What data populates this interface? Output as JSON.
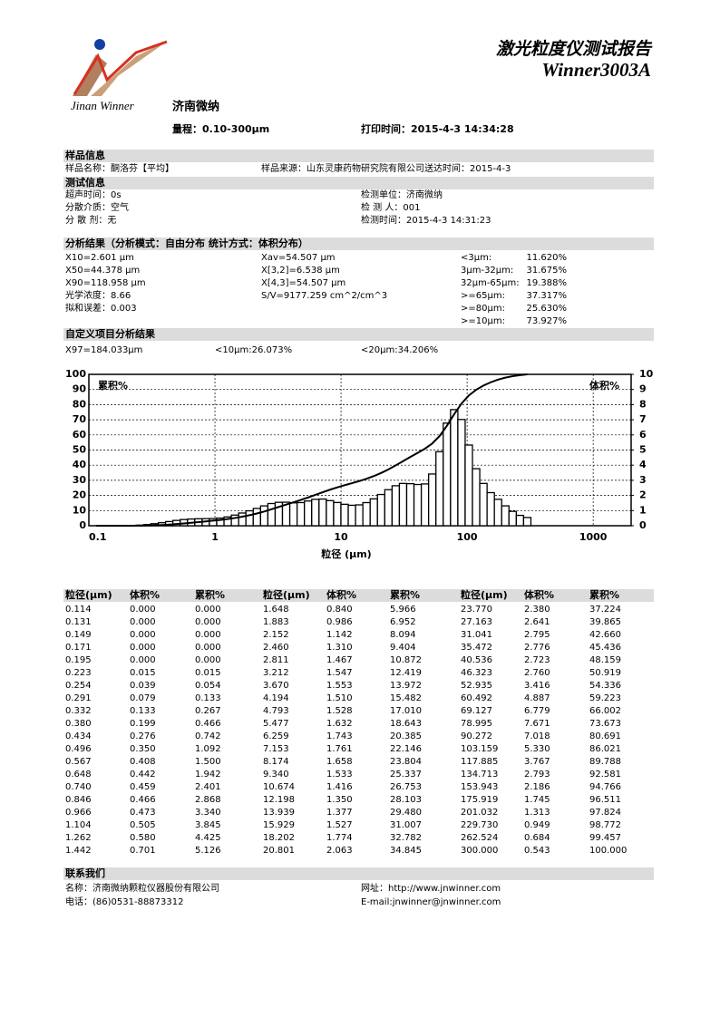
{
  "header": {
    "title": "激光粒度仪测试报告",
    "model": "Winner3003A",
    "brand_en": "Jinan Winner",
    "brand_cn": "济南微纳",
    "range": "量程：0.10-300μm",
    "print_time": "打印时间：2015-4-3 14:34:28"
  },
  "sections": [
    {
      "title": "样品信息",
      "columns": [
        [
          "样品名称：酮洛芬【平均】"
        ],
        [
          "样品来源：山东灵康药物研究院有限公司送达时间：2015-4-3"
        ]
      ]
    },
    {
      "title": "测试信息",
      "columns": [
        [
          "超声时间：0s",
          "分散介质：空气",
          "分 散 剂：无"
        ],
        [
          "检测单位：济南微纳",
          "检 测 人：001",
          "检测时间：2015-4-3 14:31:23"
        ]
      ]
    },
    {
      "title": "分析结果（分析模式：自由分布    统计方式：体积分布）",
      "columns": [
        [
          "X10=2.601 μm",
          "X50=44.378 μm",
          "X90=118.958 μm",
          "光学浓度：8.66",
          "拟和误差：0.003"
        ],
        [
          "Xav=54.507 μm",
          "X[3,2]=6.538 μm",
          "X[4,3]=54.507 μm",
          "S/V=9177.259 cm^2/cm^3"
        ],
        [
          "<3μm:",
          "3μm-32μm:",
          "32μm-65μm:",
          ">=65μm:",
          ">=80μm:",
          ">=10μm:"
        ],
        [
          "11.620%",
          "31.675%",
          "19.388%",
          "37.317%",
          "25.630%",
          "73.927%"
        ]
      ]
    },
    {
      "title": "自定义项目分析结果",
      "columns": [
        [
          "X97=184.033μm"
        ],
        [
          "<10μm:26.073%"
        ],
        [
          "<20μm:34.206%"
        ]
      ]
    }
  ],
  "chart_data": {
    "type": "bar",
    "xlabel": "粒径 (μm)",
    "log_x": true,
    "grid": true,
    "x": [
      0.114,
      0.131,
      0.149,
      0.171,
      0.195,
      0.223,
      0.254,
      0.291,
      0.332,
      0.38,
      0.434,
      0.496,
      0.567,
      0.648,
      0.74,
      0.846,
      0.966,
      1.104,
      1.262,
      1.442,
      1.648,
      1.883,
      2.152,
      2.46,
      2.811,
      3.212,
      3.67,
      4.194,
      4.793,
      5.477,
      6.259,
      7.153,
      8.174,
      9.34,
      10.674,
      12.198,
      13.939,
      15.929,
      18.202,
      20.801,
      23.77,
      27.163,
      31.041,
      35.472,
      40.536,
      46.323,
      52.935,
      60.492,
      69.127,
      78.995,
      90.272,
      103.159,
      117.885,
      134.713,
      153.943,
      175.919,
      201.032,
      229.73,
      262.524,
      300.0
    ],
    "series": [
      {
        "name": "体积%",
        "color": "#000000",
        "axis": "y2",
        "values": [
          0,
          0,
          0,
          0,
          0,
          0.015,
          0.039,
          0.079,
          0.133,
          0.199,
          0.276,
          0.35,
          0.408,
          0.442,
          0.459,
          0.466,
          0.473,
          0.505,
          0.58,
          0.701,
          0.84,
          0.986,
          1.142,
          1.31,
          1.467,
          1.547,
          1.553,
          1.51,
          1.528,
          1.632,
          1.743,
          1.761,
          1.658,
          1.533,
          1.416,
          1.35,
          1.377,
          1.527,
          1.774,
          2.063,
          2.38,
          2.641,
          2.795,
          2.776,
          2.723,
          2.76,
          3.416,
          4.887,
          6.779,
          7.671,
          7.018,
          5.33,
          3.767,
          2.793,
          2.186,
          1.745,
          1.313,
          0.949,
          0.684,
          0.543
        ]
      },
      {
        "name": "累积%",
        "color": "#000000",
        "type": "line",
        "values": [
          0,
          0,
          0,
          0,
          0,
          0.015,
          0.054,
          0.133,
          0.267,
          0.466,
          0.742,
          1.092,
          1.5,
          1.942,
          2.401,
          2.868,
          3.34,
          3.845,
          4.425,
          5.126,
          5.966,
          6.952,
          8.094,
          9.404,
          10.872,
          12.419,
          13.972,
          15.482,
          17.01,
          18.643,
          20.385,
          22.146,
          23.804,
          25.337,
          26.753,
          28.103,
          29.48,
          31.007,
          32.782,
          34.845,
          37.224,
          39.865,
          42.66,
          45.436,
          48.159,
          50.919,
          54.336,
          59.223,
          66.002,
          73.673,
          80.691,
          86.021,
          89.788,
          92.581,
          94.766,
          96.511,
          97.824,
          98.772,
          99.457,
          100.0
        ]
      }
    ],
    "xlim": [
      0.1,
      2000
    ],
    "xticks": [
      0.1,
      1,
      10,
      100,
      1000
    ],
    "ylim": [
      0,
      100
    ],
    "yticks": [
      0,
      10,
      20,
      30,
      40,
      50,
      60,
      70,
      80,
      90,
      100
    ],
    "y2lim": [
      0,
      10
    ],
    "y2ticks": [
      0,
      1,
      2,
      3,
      4,
      5,
      6,
      7,
      8,
      9,
      10
    ]
  },
  "table": {
    "header": [
      "粒径(μm)",
      "体积%",
      "累积%",
      "粒径(μm)",
      "体积%",
      "累积%",
      "粒径(μm)",
      "体积%",
      "累积%"
    ],
    "rows": [
      [
        "0.114",
        "0.000",
        "0.000",
        "1.648",
        "0.840",
        "5.966",
        "23.770",
        "2.380",
        "37.224"
      ],
      [
        "0.131",
        "0.000",
        "0.000",
        "1.883",
        "0.986",
        "6.952",
        "27.163",
        "2.641",
        "39.865"
      ],
      [
        "0.149",
        "0.000",
        "0.000",
        "2.152",
        "1.142",
        "8.094",
        "31.041",
        "2.795",
        "42.660"
      ],
      [
        "0.171",
        "0.000",
        "0.000",
        "2.460",
        "1.310",
        "9.404",
        "35.472",
        "2.776",
        "45.436"
      ],
      [
        "0.195",
        "0.000",
        "0.000",
        "2.811",
        "1.467",
        "10.872",
        "40.536",
        "2.723",
        "48.159"
      ],
      [
        "0.223",
        "0.015",
        "0.015",
        "3.212",
        "1.547",
        "12.419",
        "46.323",
        "2.760",
        "50.919"
      ],
      [
        "0.254",
        "0.039",
        "0.054",
        "3.670",
        "1.553",
        "13.972",
        "52.935",
        "3.416",
        "54.336"
      ],
      [
        "0.291",
        "0.079",
        "0.133",
        "4.194",
        "1.510",
        "15.482",
        "60.492",
        "4.887",
        "59.223"
      ],
      [
        "0.332",
        "0.133",
        "0.267",
        "4.793",
        "1.528",
        "17.010",
        "69.127",
        "6.779",
        "66.002"
      ],
      [
        "0.380",
        "0.199",
        "0.466",
        "5.477",
        "1.632",
        "18.643",
        "78.995",
        "7.671",
        "73.673"
      ],
      [
        "0.434",
        "0.276",
        "0.742",
        "6.259",
        "1.743",
        "20.385",
        "90.272",
        "7.018",
        "80.691"
      ],
      [
        "0.496",
        "0.350",
        "1.092",
        "7.153",
        "1.761",
        "22.146",
        "103.159",
        "5.330",
        "86.021"
      ],
      [
        "0.567",
        "0.408",
        "1.500",
        "8.174",
        "1.658",
        "23.804",
        "117.885",
        "3.767",
        "89.788"
      ],
      [
        "0.648",
        "0.442",
        "1.942",
        "9.340",
        "1.533",
        "25.337",
        "134.713",
        "2.793",
        "92.581"
      ],
      [
        "0.740",
        "0.459",
        "2.401",
        "10.674",
        "1.416",
        "26.753",
        "153.943",
        "2.186",
        "94.766"
      ],
      [
        "0.846",
        "0.466",
        "2.868",
        "12.198",
        "1.350",
        "28.103",
        "175.919",
        "1.745",
        "96.511"
      ],
      [
        "0.966",
        "0.473",
        "3.340",
        "13.939",
        "1.377",
        "29.480",
        "201.032",
        "1.313",
        "97.824"
      ],
      [
        "1.104",
        "0.505",
        "3.845",
        "15.929",
        "1.527",
        "31.007",
        "229.730",
        "0.949",
        "98.772"
      ],
      [
        "1.262",
        "0.580",
        "4.425",
        "18.202",
        "1.774",
        "32.782",
        "262.524",
        "0.684",
        "99.457"
      ],
      [
        "1.442",
        "0.701",
        "5.126",
        "20.801",
        "2.063",
        "34.845",
        "300.000",
        "0.543",
        "100.000"
      ]
    ]
  },
  "contact": {
    "title": "联系我们",
    "columns": [
      [
        "名称：济南微纳颗粒仪器股份有限公司",
        "电话：(86)0531-88873312"
      ],
      [
        "网址：http://www.jnwinner.com",
        "E-mail:jnwinner@jnwinner.com"
      ]
    ]
  }
}
